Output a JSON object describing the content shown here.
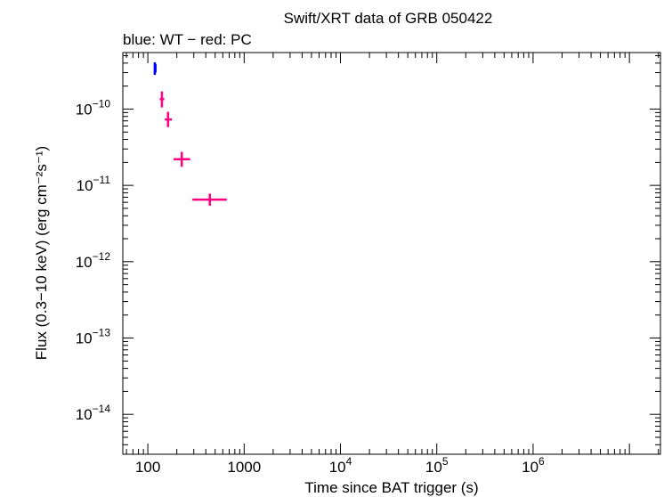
{
  "chart_data": {
    "type": "scatter",
    "title": "Swift/XRT data of GRB 050422",
    "subtitle": "blue: WT − red: PC",
    "xlabel": "Time since BAT trigger (s)",
    "ylabel": "Flux (0.3−10 keV) (erg cm⁻²s⁻¹)",
    "xscale": "log",
    "yscale": "log",
    "xlim": [
      55,
      21000000
    ],
    "ylim": [
      3e-15,
      5.5e-10
    ],
    "x_ticks": [
      {
        "value": 100,
        "label": "100"
      },
      {
        "value": 1000,
        "label": "1000"
      },
      {
        "value": 10000,
        "base": "10",
        "exp": "4"
      },
      {
        "value": 100000,
        "base": "10",
        "exp": "5"
      },
      {
        "value": 1000000,
        "base": "10",
        "exp": "6"
      }
    ],
    "y_ticks": [
      {
        "value": 1e-10,
        "base": "10",
        "exp": "−10"
      },
      {
        "value": 1e-11,
        "base": "10",
        "exp": "−11"
      },
      {
        "value": 1e-12,
        "base": "10",
        "exp": "−12"
      },
      {
        "value": 1e-13,
        "base": "10",
        "exp": "−13"
      },
      {
        "value": 1e-14,
        "base": "10",
        "exp": "−14"
      }
    ],
    "grid": false,
    "series": [
      {
        "mode": "WT",
        "color": "#0000ff",
        "points": [
          {
            "x": 118,
            "y": 3.6e-10,
            "x_lo": 116,
            "x_hi": 121,
            "y_lo": 2.8e-10,
            "y_hi": 4.1e-10
          },
          {
            "x": 120,
            "y": 3.5e-10,
            "x_lo": 119,
            "x_hi": 122,
            "y_lo": 3e-10,
            "y_hi": 3.9e-10
          }
        ]
      },
      {
        "mode": "PC",
        "color": "#ff0080",
        "points": [
          {
            "x": 140,
            "y": 1.35e-10,
            "x_lo": 133,
            "x_hi": 148,
            "y_lo": 1.05e-10,
            "y_hi": 1.7e-10
          },
          {
            "x": 162,
            "y": 7.3e-11,
            "x_lo": 150,
            "x_hi": 178,
            "y_lo": 5.8e-11,
            "y_hi": 9.2e-11
          },
          {
            "x": 225,
            "y": 2.2e-11,
            "x_lo": 185,
            "x_hi": 275,
            "y_lo": 1.75e-11,
            "y_hi": 2.75e-11
          },
          {
            "x": 440,
            "y": 6.5e-12,
            "x_lo": 290,
            "x_hi": 660,
            "y_lo": 5.4e-12,
            "y_hi": 7.8e-12
          }
        ]
      }
    ]
  }
}
